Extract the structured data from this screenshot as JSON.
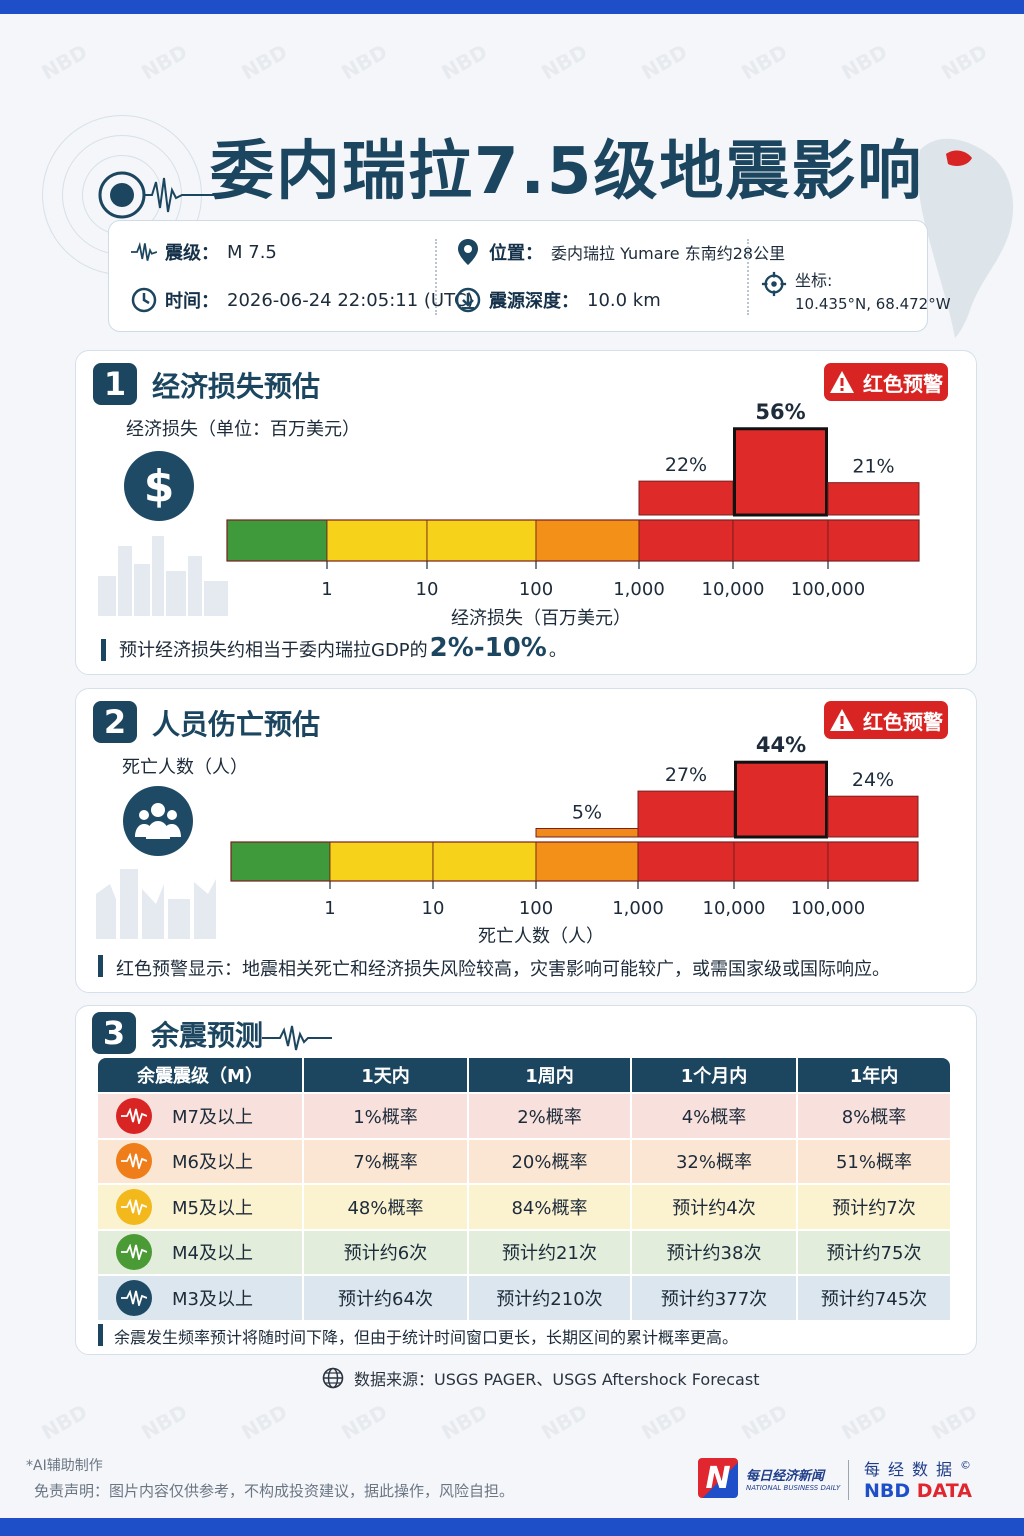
{
  "title": "委内瑞拉7.5级地震影响",
  "watermark_text": "NBD",
  "info": {
    "magnitude_label": "震级：",
    "magnitude_value": "M 7.5",
    "time_label": "时间：",
    "time_value": "2026-06-24 22:05:11 (UTC)",
    "location_label": "位置：",
    "location_value": "委内瑞拉 Yumare 东南约28公里",
    "depth_label": "震源深度：",
    "depth_value": "10.0 km",
    "coord_label": "坐标:",
    "coord_value": "10.435°N, 68.472°W"
  },
  "section1": {
    "number": "1",
    "title": "经济损失预估",
    "alert_label": "红色预警",
    "subtitle": "经济损失（单位：百万美元）",
    "note_prefix": "预计经济损失约相当于委内瑞拉GDP的",
    "note_highlight": "2%-10%",
    "note_suffix": "。"
  },
  "section2": {
    "number": "2",
    "title": "人员伤亡预估",
    "alert_label": "红色预警",
    "subtitle": "死亡人数（人）",
    "note": "红色预警显示：地震相关死亡和经济损失风险较高，灾害影响可能较广，或需国家级或国际响应。"
  },
  "section3": {
    "number": "3",
    "title": "余震预测",
    "note": "余震发生频率预计将随时间下降，但由于统计时间窗口更长，长期区间的累计概率更高。",
    "headers": [
      "余震震级（M）",
      "1天内",
      "1周内",
      "1个月内",
      "1年内"
    ],
    "rows": [
      {
        "mag": "M7及以上",
        "color": "#d92424",
        "bg": "#f8e0dc",
        "cells": [
          "1%概率",
          "2%概率",
          "4%概率",
          "8%概率"
        ]
      },
      {
        "mag": "M6及以上",
        "color": "#ef7d1a",
        "bg": "#fbe6d3",
        "cells": [
          "7%概率",
          "20%概率",
          "32%概率",
          "51%概率"
        ]
      },
      {
        "mag": "M5及以上",
        "color": "#f2b81c",
        "bg": "#fbf2cf",
        "cells": [
          "48%概率",
          "84%概率",
          "预计约4次",
          "预计约7次"
        ]
      },
      {
        "mag": "M4及以上",
        "color": "#4a9a35",
        "bg": "#e2eedb",
        "cells": [
          "预计约6次",
          "预计约21次",
          "预计约38次",
          "预计约75次"
        ]
      },
      {
        "mag": "M3及以上",
        "color": "#1f4a66",
        "bg": "#dbe6ee",
        "cells": [
          "预计约64次",
          "预计约210次",
          "预计约377次",
          "预计约745次"
        ]
      }
    ]
  },
  "source_text": "数据来源：USGS PAGER、USGS Aftershock Forecast",
  "footer": {
    "ai_note": "*AI辅助制作",
    "disclaimer": "免责声明：图片内容仅供参考，不构成投资建议，据此操作，风险自担。",
    "logo_cn": "每日经济新闻",
    "logo_en": "NATIONAL BUSINESS DAILY",
    "logo_letter": "N",
    "nbd_cn": "每经数据",
    "nbd_en_1": "NBD",
    "nbd_en_2": "DATA",
    "copyright": "©"
  },
  "chart_data": [
    {
      "type": "bar",
      "title": "经济损失（单位：百万美元）",
      "xlabel": "经济损失（百万美元）",
      "x_scale": "log",
      "tick_labels": [
        "1",
        "10",
        "100",
        "1,000",
        "10,000",
        "100,000"
      ],
      "bins": [
        "<1",
        "1-10",
        "10-100",
        "100-1,000",
        "1,000-10,000",
        "10,000-100,000",
        ">100,000"
      ],
      "bin_colors": [
        "#3f9a3b",
        "#f7d21a",
        "#f7d21a",
        "#f39018",
        "#df2a2a",
        "#df2a2a",
        "#df2a2a"
      ],
      "values": [
        0,
        0,
        0,
        0,
        22,
        56,
        21
      ],
      "value_labels": [
        "",
        "",
        "",
        "",
        "22%",
        "56%",
        "21%"
      ],
      "highlight_bin": 5,
      "unit": "%"
    },
    {
      "type": "bar",
      "title": "死亡人数（人）",
      "xlabel": "死亡人数（人）",
      "x_scale": "log",
      "tick_labels": [
        "1",
        "10",
        "100",
        "1,000",
        "10,000",
        "100,000"
      ],
      "bins": [
        "<1",
        "1-10",
        "10-100",
        "100-1,000",
        "1,000-10,000",
        "10,000-100,000",
        ">100,000"
      ],
      "bin_colors": [
        "#3f9a3b",
        "#f7d21a",
        "#f7d21a",
        "#f39018",
        "#df2a2a",
        "#df2a2a",
        "#df2a2a"
      ],
      "values": [
        0,
        0,
        0,
        5,
        27,
        44,
        24
      ],
      "value_labels": [
        "",
        "",
        "",
        "5%",
        "27%",
        "44%",
        "24%"
      ],
      "highlight_bin": 5,
      "unit": "%"
    }
  ]
}
